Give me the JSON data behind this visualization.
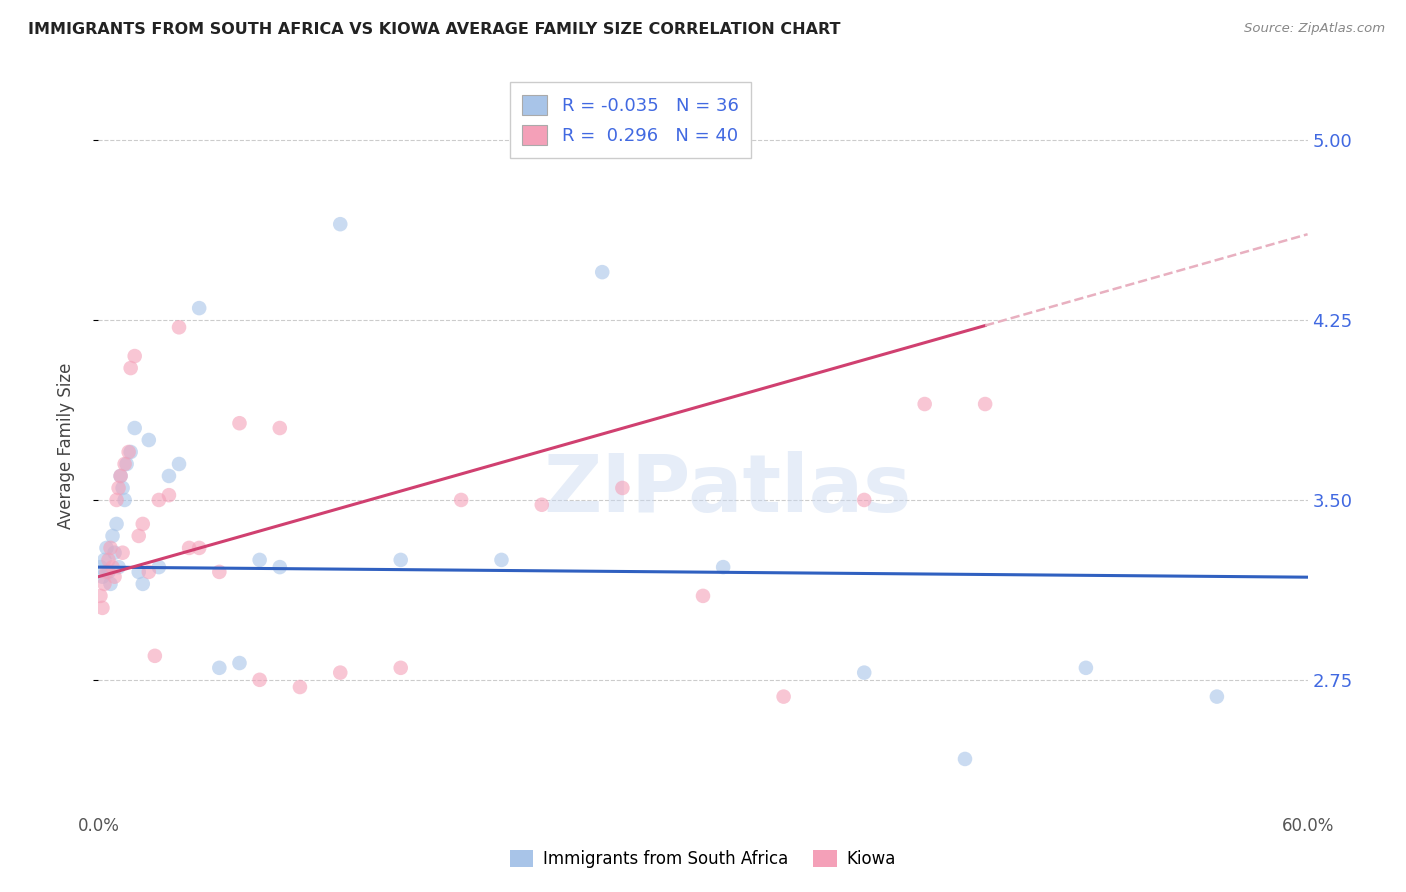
{
  "title": "IMMIGRANTS FROM SOUTH AFRICA VS KIOWA AVERAGE FAMILY SIZE CORRELATION CHART",
  "source": "Source: ZipAtlas.com",
  "ylabel": "Average Family Size",
  "xlim": [
    0.0,
    0.6
  ],
  "ylim": [
    2.2,
    5.25
  ],
  "yticks": [
    2.75,
    3.5,
    4.25,
    5.0
  ],
  "ytick_labels": [
    "2.75",
    "3.50",
    "4.25",
    "5.00"
  ],
  "xticks": [
    0.0,
    0.1,
    0.2,
    0.3,
    0.4,
    0.5,
    0.6
  ],
  "xtick_labels": [
    "0.0%",
    "",
    "",
    "",
    "",
    "",
    "60.0%"
  ],
  "right_ytick_color": "#4169e1",
  "background_color": "#ffffff",
  "watermark": "ZIPatlas",
  "r_blue": -0.035,
  "n_blue": 36,
  "r_pink": 0.296,
  "n_pink": 40,
  "blue_color": "#a8c4e8",
  "pink_color": "#f4a0b8",
  "blue_line_color": "#3060c0",
  "pink_line_color": "#d04070",
  "pink_dash_color": "#e8b0c0",
  "scatter_alpha": 0.6,
  "scatter_size": 110,
  "blue_scatter_x": [
    0.001,
    0.002,
    0.003,
    0.004,
    0.005,
    0.006,
    0.007,
    0.008,
    0.009,
    0.01,
    0.011,
    0.012,
    0.013,
    0.014,
    0.016,
    0.018,
    0.02,
    0.022,
    0.025,
    0.03,
    0.035,
    0.04,
    0.05,
    0.06,
    0.07,
    0.08,
    0.09,
    0.12,
    0.15,
    0.2,
    0.25,
    0.31,
    0.38,
    0.43,
    0.49,
    0.555
  ],
  "blue_scatter_y": [
    3.22,
    3.18,
    3.25,
    3.3,
    3.2,
    3.15,
    3.35,
    3.28,
    3.4,
    3.22,
    3.6,
    3.55,
    3.5,
    3.65,
    3.7,
    3.8,
    3.2,
    3.15,
    3.75,
    3.22,
    3.6,
    3.65,
    4.3,
    2.8,
    2.82,
    3.25,
    3.22,
    4.65,
    3.25,
    3.25,
    4.45,
    3.22,
    2.78,
    2.42,
    2.8,
    2.68
  ],
  "pink_scatter_x": [
    0.001,
    0.002,
    0.003,
    0.004,
    0.005,
    0.006,
    0.007,
    0.008,
    0.009,
    0.01,
    0.011,
    0.012,
    0.013,
    0.015,
    0.016,
    0.018,
    0.02,
    0.022,
    0.025,
    0.028,
    0.03,
    0.035,
    0.04,
    0.045,
    0.05,
    0.06,
    0.07,
    0.08,
    0.09,
    0.1,
    0.12,
    0.15,
    0.18,
    0.22,
    0.26,
    0.3,
    0.34,
    0.38,
    0.41,
    0.44
  ],
  "pink_scatter_y": [
    3.1,
    3.05,
    3.15,
    3.2,
    3.25,
    3.3,
    3.22,
    3.18,
    3.5,
    3.55,
    3.6,
    3.28,
    3.65,
    3.7,
    4.05,
    4.1,
    3.35,
    3.4,
    3.2,
    2.85,
    3.5,
    3.52,
    4.22,
    3.3,
    3.3,
    3.2,
    3.82,
    2.75,
    3.8,
    2.72,
    2.78,
    2.8,
    3.5,
    3.48,
    3.55,
    3.1,
    2.68,
    3.5,
    3.9,
    3.9
  ],
  "legend_blue_label": "Immigrants from South Africa",
  "legend_pink_label": "Kiowa"
}
